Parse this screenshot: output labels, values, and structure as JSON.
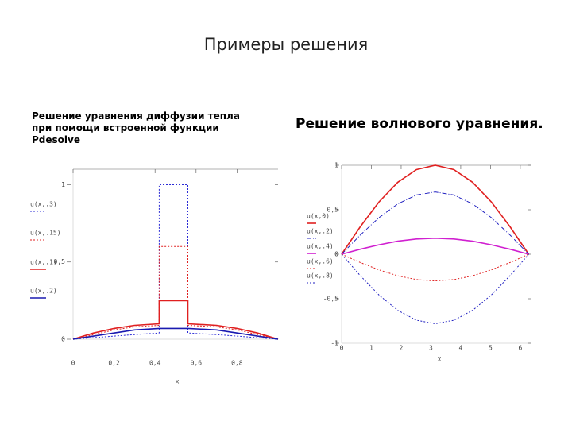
{
  "slide_title": "Примеры решения",
  "chart_data": [
    {
      "type": "line",
      "title": "Решение уравнения диффузии тепла при помощи встроенной функции Pdesolve",
      "x_label": "x",
      "x": [
        0,
        0.1,
        0.2,
        0.3,
        0.42,
        0.42,
        0.56,
        0.56,
        0.7,
        0.8,
        0.9,
        1
      ],
      "series": [
        {
          "name": "u(x,.3)",
          "color": "#2b2bd6",
          "style": "dotted",
          "values": [
            0,
            0.01,
            0.02,
            0.03,
            0.04,
            1,
            1,
            0.04,
            0.03,
            0.02,
            0.01,
            0
          ]
        },
        {
          "name": "u(x,.15)",
          "color": "#e02020",
          "style": "dotted",
          "values": [
            0,
            0.03,
            0.06,
            0.08,
            0.09,
            0.6,
            0.6,
            0.09,
            0.08,
            0.06,
            0.03,
            0
          ]
        },
        {
          "name": "u(x,.1)",
          "color": "#e02020",
          "style": "solid",
          "values": [
            0,
            0.04,
            0.07,
            0.09,
            0.1,
            0.25,
            0.25,
            0.1,
            0.09,
            0.07,
            0.04,
            0
          ]
        },
        {
          "name": "u(x,.2)",
          "color": "#1a1ab0",
          "style": "solid",
          "values": [
            0,
            0.02,
            0.04,
            0.06,
            0.07,
            0.07,
            0.07,
            0.07,
            0.06,
            0.04,
            0.02,
            0
          ]
        }
      ],
      "xlim": [
        0,
        1
      ],
      "ylim": [
        0,
        1.1
      ],
      "xticks": [
        0,
        {
          "value": 0.2,
          "label": "0,2"
        },
        {
          "value": 0.4,
          "label": "0,4"
        },
        {
          "value": 0.6,
          "label": "0,6"
        },
        {
          "value": 0.8,
          "label": "0,8"
        }
      ],
      "yticks": [
        0,
        {
          "value": 0.5,
          "label": "0,5"
        },
        1
      ]
    },
    {
      "type": "line",
      "title": "Решение волнового уравнения.",
      "x_label": "x",
      "x": [
        0,
        0.628,
        1.257,
        1.885,
        2.513,
        3.142,
        3.77,
        4.398,
        5.027,
        5.655,
        6.283
      ],
      "series": [
        {
          "name": "u(x,0)",
          "color": "#e02020",
          "style": "solid",
          "values": [
            0,
            0.309,
            0.588,
            0.809,
            0.951,
            1,
            0.951,
            0.809,
            0.588,
            0.309,
            0
          ]
        },
        {
          "name": "u(x,.2)",
          "color": "#2020c0",
          "style": "dashdot",
          "values": [
            0,
            0.216,
            0.412,
            0.566,
            0.666,
            0.7,
            0.666,
            0.566,
            0.412,
            0.216,
            0
          ]
        },
        {
          "name": "u(x,.4)",
          "color": "#d020d0",
          "style": "solid",
          "values": [
            0,
            0.056,
            0.106,
            0.146,
            0.171,
            0.18,
            0.171,
            0.146,
            0.106,
            0.056,
            0
          ]
        },
        {
          "name": "u(x,.6)",
          "color": "#e02020",
          "style": "dotted",
          "values": [
            0,
            -0.093,
            -0.176,
            -0.243,
            -0.285,
            -0.3,
            -0.285,
            -0.243,
            -0.176,
            -0.093,
            0
          ]
        },
        {
          "name": "u(x,.8)",
          "color": "#2020c0",
          "style": "dotted",
          "values": [
            0,
            -0.241,
            -0.459,
            -0.631,
            -0.742,
            -0.78,
            -0.742,
            -0.631,
            -0.459,
            -0.241,
            0
          ]
        }
      ],
      "xlim": [
        0,
        6.35
      ],
      "ylim": [
        -1,
        1
      ],
      "xticks": [
        0,
        1,
        2,
        3,
        4,
        5,
        6
      ],
      "yticks": [
        -1,
        {
          "value": -0.5,
          "label": "-0,5"
        },
        0,
        {
          "value": 0.5,
          "label": "0,5"
        },
        1
      ]
    }
  ]
}
